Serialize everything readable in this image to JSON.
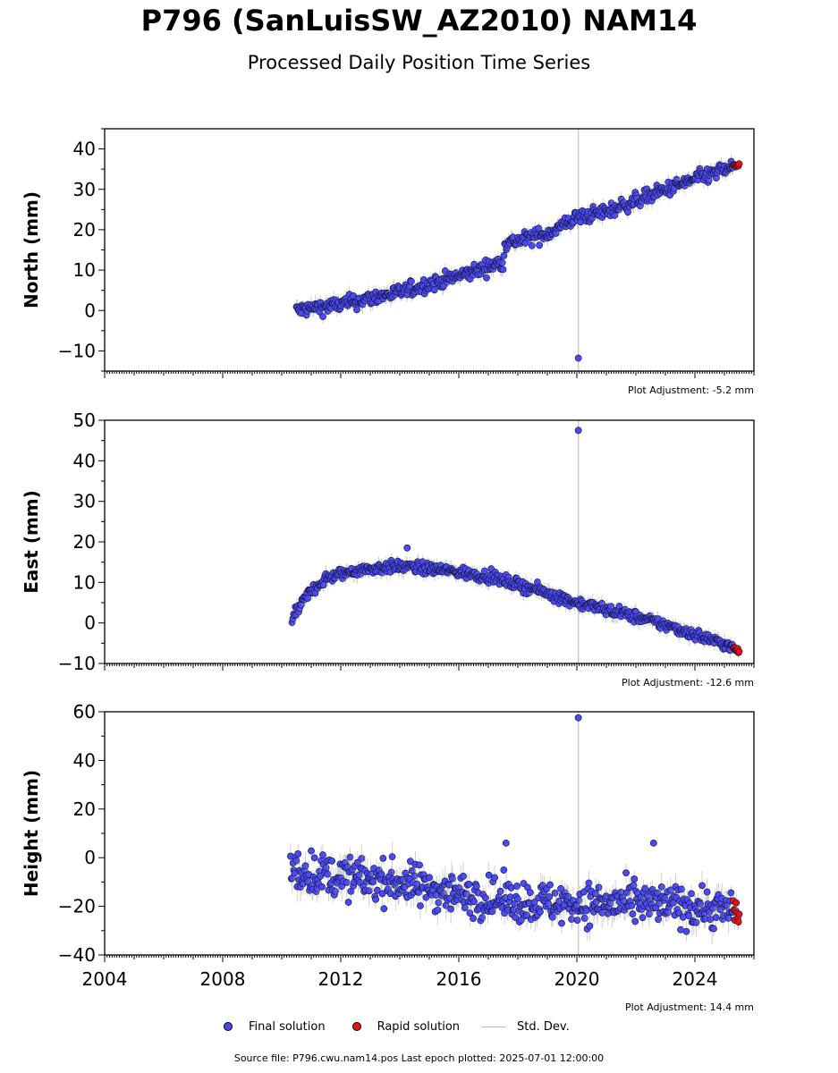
{
  "title": "P796 (SanLuisSW_AZ2010) NAM14",
  "subtitle": "Processed Daily Position Time Series",
  "legend": {
    "final": {
      "label": "Final solution",
      "color": "#4a4af5"
    },
    "rapid": {
      "label": "Rapid solution",
      "color": "#e81010"
    },
    "std": {
      "label": "Std. Dev.",
      "color": "#bbbbbb"
    }
  },
  "footer": "Source file: P796.cwu.nam14.pos  Last epoch plotted: 2025-07-01 12:00:00",
  "chart_data": [
    {
      "type": "scatter",
      "ylabel": "North (mm)",
      "ylim": [
        -15,
        45
      ],
      "yticks": [
        -10,
        0,
        10,
        20,
        30,
        40
      ],
      "ytick_labels": [
        "−10",
        "0",
        "10",
        "20",
        "30",
        "40"
      ],
      "xlim": [
        2004,
        2026
      ],
      "adjustment": "Plot Adjustment: -5.2 mm",
      "series": [
        {
          "name": "Final solution",
          "trend": [
            [
              2010.5,
              0
            ],
            [
              2012.0,
              1.5
            ],
            [
              2014.0,
              4.5
            ],
            [
              2016.0,
              8.5
            ],
            [
              2017.5,
              12.0
            ],
            [
              2017.55,
              16.5
            ],
            [
              2019.0,
              19.0
            ],
            [
              2020.0,
              23.0
            ],
            [
              2021.0,
              24.5
            ],
            [
              2022.5,
              28.5
            ],
            [
              2024.0,
              32.5
            ],
            [
              2025.3,
              35.5
            ]
          ],
          "noise": 1.3
        },
        {
          "name": "Rapid solution",
          "trend": [
            [
              2025.3,
              35.8
            ],
            [
              2025.5,
              36.2
            ]
          ],
          "noise": 0.5
        }
      ],
      "outliers": [
        {
          "x": 2020.05,
          "y": -11.8
        }
      ],
      "event_line_x": 2020.05
    },
    {
      "type": "scatter",
      "ylabel": "East (mm)",
      "ylim": [
        -10,
        50
      ],
      "yticks": [
        -10,
        0,
        10,
        20,
        30,
        40,
        50
      ],
      "ytick_labels": [
        "−10",
        "0",
        "10",
        "20",
        "30",
        "40",
        "50"
      ],
      "xlim": [
        2004,
        2026
      ],
      "adjustment": "Plot Adjustment: -12.6 mm",
      "series": [
        {
          "name": "Final solution",
          "trend": [
            [
              2010.35,
              0.5
            ],
            [
              2010.6,
              4.0
            ],
            [
              2011.0,
              8.0
            ],
            [
              2011.5,
              11.0
            ],
            [
              2012.5,
              13.0
            ],
            [
              2014.0,
              14.0
            ],
            [
              2015.5,
              13.0
            ],
            [
              2017.0,
              11.5
            ],
            [
              2018.5,
              8.5
            ],
            [
              2020.0,
              5.0
            ],
            [
              2021.5,
              2.5
            ],
            [
              2023.0,
              -0.5
            ],
            [
              2024.5,
              -4.0
            ],
            [
              2025.3,
              -6.0
            ]
          ],
          "noise": 1.0
        },
        {
          "name": "Rapid solution",
          "trend": [
            [
              2025.3,
              -6.3
            ],
            [
              2025.5,
              -7.0
            ]
          ],
          "noise": 0.5
        }
      ],
      "outliers": [
        {
          "x": 2020.05,
          "y": 47.5
        },
        {
          "x": 2014.25,
          "y": 18.5
        }
      ],
      "event_line_x": 2020.05
    },
    {
      "type": "scatter",
      "ylabel": "Height (mm)",
      "ylim": [
        -40,
        60
      ],
      "yticks": [
        -40,
        -20,
        0,
        20,
        40,
        60
      ],
      "ytick_labels": [
        "−40",
        "−20",
        "0",
        "20",
        "40",
        "60"
      ],
      "xlim": [
        2004,
        2026
      ],
      "xticks": [
        2004,
        2008,
        2012,
        2016,
        2020,
        2024
      ],
      "xtick_labels": [
        "2004",
        "2008",
        "2012",
        "2016",
        "2020",
        "2024"
      ],
      "adjustment": "Plot Adjustment: 14.4 mm",
      "series": [
        {
          "name": "Final solution",
          "trend": [
            [
              2010.3,
              -5
            ],
            [
              2012.0,
              -8
            ],
            [
              2014.0,
              -10
            ],
            [
              2016.0,
              -15
            ],
            [
              2018.0,
              -18
            ],
            [
              2020.0,
              -19
            ],
            [
              2022.0,
              -19
            ],
            [
              2024.0,
              -20
            ],
            [
              2025.3,
              -22
            ]
          ],
          "noise": 6.0
        },
        {
          "name": "Rapid solution",
          "trend": [
            [
              2025.3,
              -20
            ],
            [
              2025.5,
              -24
            ]
          ],
          "noise": 3.5
        }
      ],
      "outliers": [
        {
          "x": 2020.05,
          "y": 57.5
        },
        {
          "x": 2017.6,
          "y": 6
        },
        {
          "x": 2022.6,
          "y": 6
        }
      ],
      "event_line_x": 2020.05
    }
  ]
}
